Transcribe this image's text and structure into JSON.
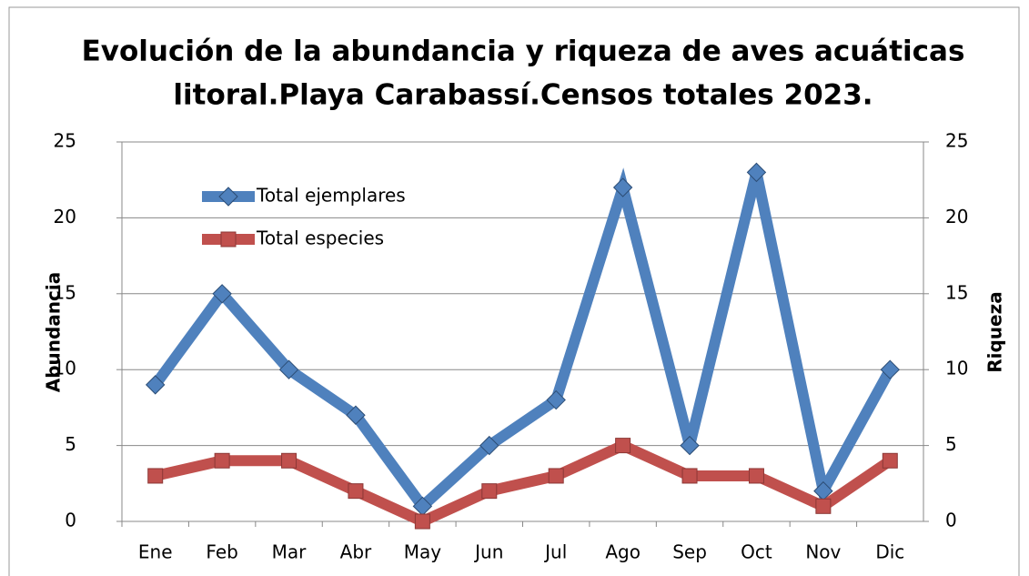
{
  "chart_data": {
    "type": "line",
    "title": [
      "Evolución de la abundancia y riqueza de aves acuáticas",
      "litoral.Playa Carabassí.Censos totales 2023."
    ],
    "ylabel": "Abundancia",
    "y2label": "Riqueza",
    "categories": [
      "Ene",
      "Feb",
      "Mar",
      "Abr",
      "May",
      "Jun",
      "Jul",
      "Ago",
      "Sep",
      "Oct",
      "Nov",
      "Dic"
    ],
    "series": [
      {
        "name": "Total ejemplares",
        "color": "#4f81bd",
        "marker": "diamond",
        "values": [
          9,
          15,
          10,
          7,
          1,
          5,
          8,
          22,
          5,
          23,
          2,
          10
        ]
      },
      {
        "name": "Total especies",
        "color": "#c0504d",
        "marker": "square",
        "axis": "y2",
        "values": [
          3,
          4,
          4,
          2,
          0,
          2,
          3,
          5,
          3,
          3,
          1,
          4
        ]
      }
    ],
    "ylim": [
      0,
      25
    ],
    "yticks": [
      0,
      5,
      10,
      15,
      20,
      25
    ],
    "y2lim": [
      0,
      25
    ],
    "y2ticks": [
      0,
      5,
      10,
      15,
      20,
      25
    ],
    "grid": true,
    "legend": "upper left"
  }
}
